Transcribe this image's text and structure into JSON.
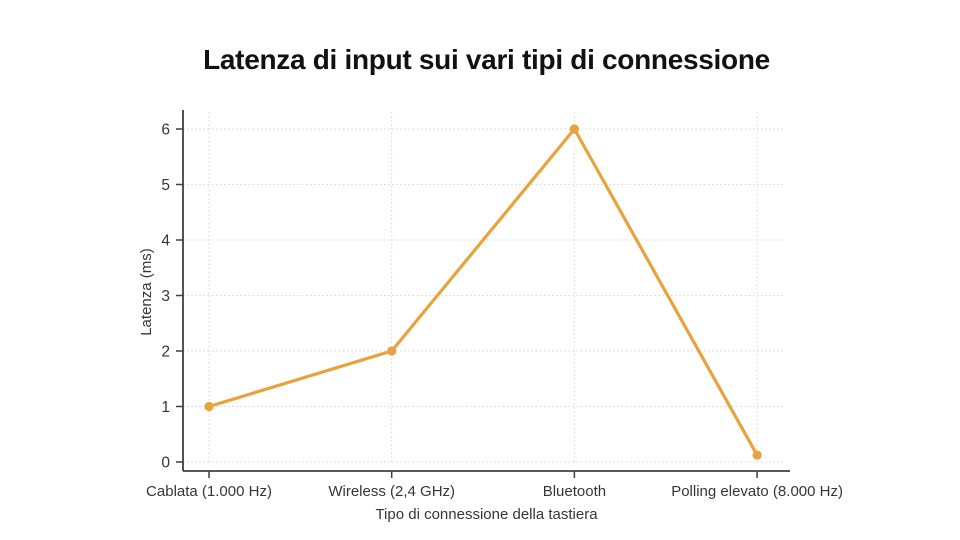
{
  "chart_data": {
    "type": "line",
    "title": "Latenza di input sui vari tipi di connessione",
    "xlabel": "Tipo di connessione della tastiera",
    "ylabel": "Latenza (ms)",
    "categories": [
      "Cablata (1.000 Hz)",
      "Wireless (2,4 GHz)",
      "Bluetooth",
      "Polling elevato (8.000 Hz)"
    ],
    "series": [
      {
        "name": "Latenza",
        "values": [
          1,
          2,
          6,
          0.125
        ]
      }
    ],
    "ylim": [
      0,
      6
    ],
    "yticks": [
      0,
      1,
      2,
      3,
      4,
      5,
      6
    ],
    "grid": true,
    "grid_style": "dotted",
    "legend": "none",
    "line_color": "#E8A33D",
    "marker_color": "#E8A33D",
    "axis_color": "#3f3f3f",
    "grid_color": "#d6d6d6",
    "tick_label_color": "#363636",
    "title_color": "#111111",
    "background_color": "#ffffff"
  }
}
